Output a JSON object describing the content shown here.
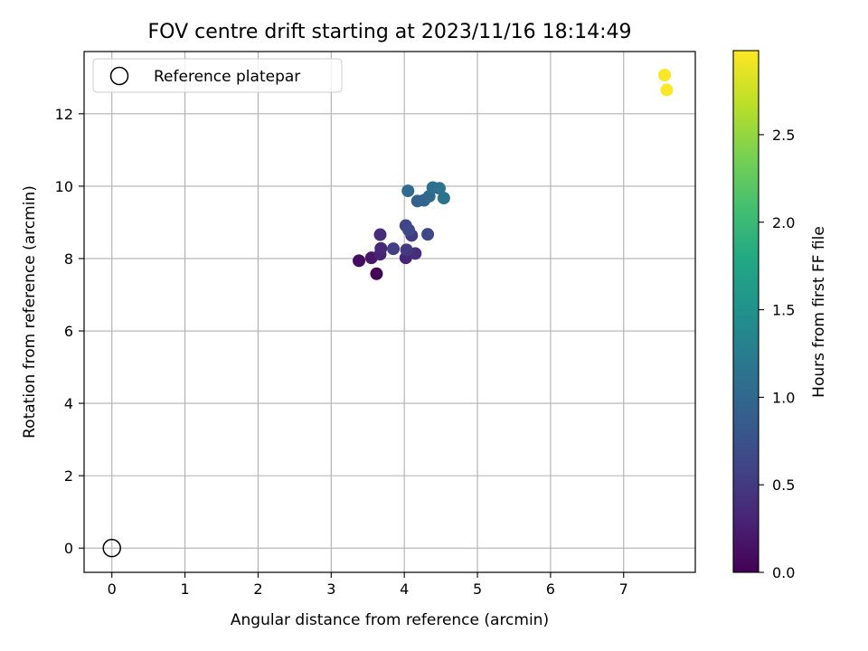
{
  "chart_data": {
    "type": "scatter",
    "title": "FOV centre drift starting at 2023/11/16 18:14:49",
    "xlabel": "Angular distance from reference (arcmin)",
    "ylabel": "Rotation from reference (arcmin)",
    "xlim": [
      -0.38,
      7.98
    ],
    "ylim": [
      -0.67,
      13.72
    ],
    "xticks": [
      "0",
      "1",
      "2",
      "3",
      "4",
      "5",
      "6",
      "7"
    ],
    "yticks": [
      "0",
      "2",
      "4",
      "6",
      "8",
      "10",
      "12"
    ],
    "grid": true,
    "legend": {
      "position": "top-left",
      "entries": [
        {
          "label": "Reference platepar",
          "marker": "open-circle"
        }
      ]
    },
    "reference_point": {
      "x": 0,
      "y": 0
    },
    "colorbar": {
      "label": "Hours from first FF file",
      "colormap": "viridis",
      "range": [
        0,
        2.98
      ],
      "ticks": [
        "0.0",
        "0.5",
        "1.0",
        "1.5",
        "2.0",
        "2.5"
      ]
    },
    "points": [
      {
        "x": 3.62,
        "y": 7.58,
        "c": 0.02
      },
      {
        "x": 3.38,
        "y": 7.94,
        "c": 0.1
      },
      {
        "x": 3.55,
        "y": 8.02,
        "c": 0.2
      },
      {
        "x": 3.67,
        "y": 8.12,
        "c": 0.28
      },
      {
        "x": 3.68,
        "y": 8.28,
        "c": 0.33
      },
      {
        "x": 3.67,
        "y": 8.66,
        "c": 0.38
      },
      {
        "x": 4.02,
        "y": 8.02,
        "c": 0.32
      },
      {
        "x": 4.15,
        "y": 8.14,
        "c": 0.4
      },
      {
        "x": 4.03,
        "y": 8.24,
        "c": 0.48
      },
      {
        "x": 3.85,
        "y": 8.27,
        "c": 0.55
      },
      {
        "x": 4.1,
        "y": 8.64,
        "c": 0.5
      },
      {
        "x": 4.02,
        "y": 8.91,
        "c": 0.6
      },
      {
        "x": 4.06,
        "y": 8.79,
        "c": 0.65
      },
      {
        "x": 4.32,
        "y": 8.67,
        "c": 0.66
      },
      {
        "x": 4.18,
        "y": 9.59,
        "c": 0.9
      },
      {
        "x": 4.27,
        "y": 9.61,
        "c": 0.95
      },
      {
        "x": 4.34,
        "y": 9.72,
        "c": 1.0
      },
      {
        "x": 4.05,
        "y": 9.87,
        "c": 1.05
      },
      {
        "x": 4.39,
        "y": 9.96,
        "c": 1.08
      },
      {
        "x": 4.48,
        "y": 9.94,
        "c": 1.12
      },
      {
        "x": 4.54,
        "y": 9.67,
        "c": 1.15
      },
      {
        "x": 7.56,
        "y": 13.07,
        "c": 2.96
      },
      {
        "x": 7.59,
        "y": 12.66,
        "c": 2.97
      }
    ]
  }
}
